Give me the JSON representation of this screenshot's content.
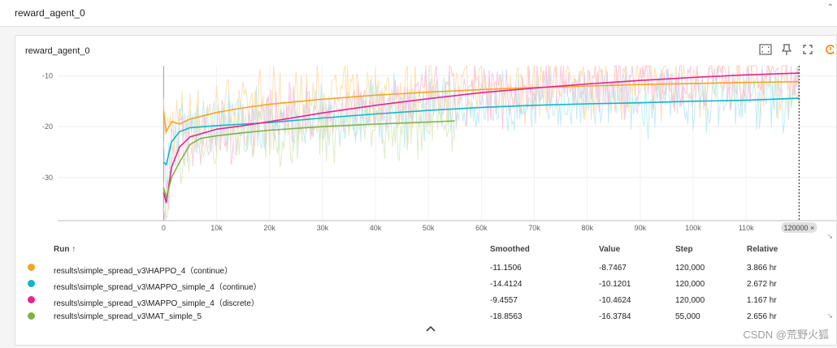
{
  "topbar": {
    "title": "reward_agent_0"
  },
  "card": {
    "title": "reward_agent_0"
  },
  "tools": {
    "fit_icon": "fit-domain-icon",
    "pin_icon": "pin-icon",
    "fullscreen_icon": "fullscreen-icon",
    "more_icon": "more-icon"
  },
  "chart_data": {
    "type": "line",
    "x_domain": [
      -20000,
      127000
    ],
    "ylim": [
      -38.5,
      -8
    ],
    "y_ticks": [
      -10,
      -20,
      -30
    ],
    "y_tick_labels": [
      "-10",
      "-20",
      "-30"
    ],
    "x_ticks": [
      0,
      10000,
      20000,
      30000,
      40000,
      50000,
      60000,
      70000,
      80000,
      90000,
      100000,
      110000
    ],
    "x_tick_labels": [
      "0",
      "10k",
      "20k",
      "30k",
      "40k",
      "50k",
      "60k",
      "70k",
      "80k",
      "90k",
      "100k",
      "110k"
    ],
    "step_marker": {
      "x": 120000,
      "label": "120000 ×"
    },
    "grid": true,
    "series": [
      {
        "color": "#f5a623",
        "raw_color": "#fdd9a0",
        "points": [
          [
            0,
            -17
          ],
          [
            500,
            -21
          ],
          [
            1500,
            -19
          ],
          [
            3000,
            -19.5
          ],
          [
            5000,
            -18.5
          ],
          [
            10000,
            -17.2
          ],
          [
            15000,
            -16.3
          ],
          [
            20000,
            -15.6
          ],
          [
            30000,
            -14.6
          ],
          [
            40000,
            -13.8
          ],
          [
            50000,
            -13.2
          ],
          [
            60000,
            -12.7
          ],
          [
            70000,
            -12.3
          ],
          [
            80000,
            -12.0
          ],
          [
            90000,
            -11.7
          ],
          [
            100000,
            -11.5
          ],
          [
            110000,
            -11.3
          ],
          [
            120000,
            -11.15
          ]
        ]
      },
      {
        "color": "#12b5cb",
        "raw_color": "#b4e7ef",
        "points": [
          [
            0,
            -27
          ],
          [
            500,
            -27.5
          ],
          [
            1500,
            -23
          ],
          [
            3000,
            -21
          ],
          [
            5000,
            -20.2
          ],
          [
            10000,
            -19.8
          ],
          [
            15000,
            -19.5
          ],
          [
            20000,
            -19.2
          ],
          [
            30000,
            -18.3
          ],
          [
            40000,
            -17.5
          ],
          [
            50000,
            -16.8
          ],
          [
            60000,
            -16.2
          ],
          [
            70000,
            -15.8
          ],
          [
            80000,
            -15.5
          ],
          [
            90000,
            -15.3
          ],
          [
            100000,
            -15.0
          ],
          [
            110000,
            -14.8
          ],
          [
            120000,
            -14.41
          ]
        ]
      },
      {
        "color": "#e52592",
        "raw_color": "#f6bcd9",
        "points": [
          [
            0,
            -33
          ],
          [
            500,
            -35
          ],
          [
            1500,
            -28
          ],
          [
            3000,
            -24
          ],
          [
            5000,
            -22
          ],
          [
            10000,
            -20.5
          ],
          [
            15000,
            -19.8
          ],
          [
            20000,
            -19.0
          ],
          [
            30000,
            -17.3
          ],
          [
            40000,
            -15.8
          ],
          [
            50000,
            -14.5
          ],
          [
            60000,
            -13.3
          ],
          [
            70000,
            -12.4
          ],
          [
            80000,
            -11.6
          ],
          [
            90000,
            -10.9
          ],
          [
            100000,
            -10.3
          ],
          [
            110000,
            -9.8
          ],
          [
            120000,
            -9.46
          ]
        ]
      },
      {
        "color": "#7cb342",
        "raw_color": "#d4e8bd",
        "points": [
          [
            0,
            -32
          ],
          [
            500,
            -34
          ],
          [
            1500,
            -30
          ],
          [
            3000,
            -27
          ],
          [
            5000,
            -23.5
          ],
          [
            7000,
            -22.3
          ],
          [
            10000,
            -21.8
          ],
          [
            15000,
            -21.2
          ],
          [
            20000,
            -20.7
          ],
          [
            30000,
            -20.0
          ],
          [
            40000,
            -19.5
          ],
          [
            50000,
            -19.1
          ],
          [
            55000,
            -18.86
          ]
        ]
      }
    ]
  },
  "table": {
    "headers": {
      "run": "Run ↑",
      "smoothed": "Smoothed",
      "value": "Value",
      "step": "Step",
      "relative": "Relative"
    },
    "rows": [
      {
        "color": "#f5a623",
        "run": "results\\simple_spread_v3\\HAPPO_4（continue）",
        "smoothed": "-11.1506",
        "value": "-8.7467",
        "step": "120,000",
        "relative": "3.866 hr"
      },
      {
        "color": "#12b5cb",
        "run": "results\\simple_spread_v3\\MAPPO_simple_4（continue）",
        "smoothed": "-14.4124",
        "value": "-10.1201",
        "step": "120,000",
        "relative": "2.672 hr"
      },
      {
        "color": "#e52592",
        "run": "results\\simple_spread_v3\\MAPPO_simple_4（discrete）",
        "smoothed": "-9.4557",
        "value": "-10.4624",
        "step": "120,000",
        "relative": "1.167 hr"
      },
      {
        "color": "#7cb342",
        "run": "results\\simple_spread_v3\\MAT_simple_5",
        "smoothed": "-18.8563",
        "value": "-16.3784",
        "step": "55,000",
        "relative": "2.656 hr"
      }
    ]
  },
  "watermark": "CSDN @荒野火狐"
}
